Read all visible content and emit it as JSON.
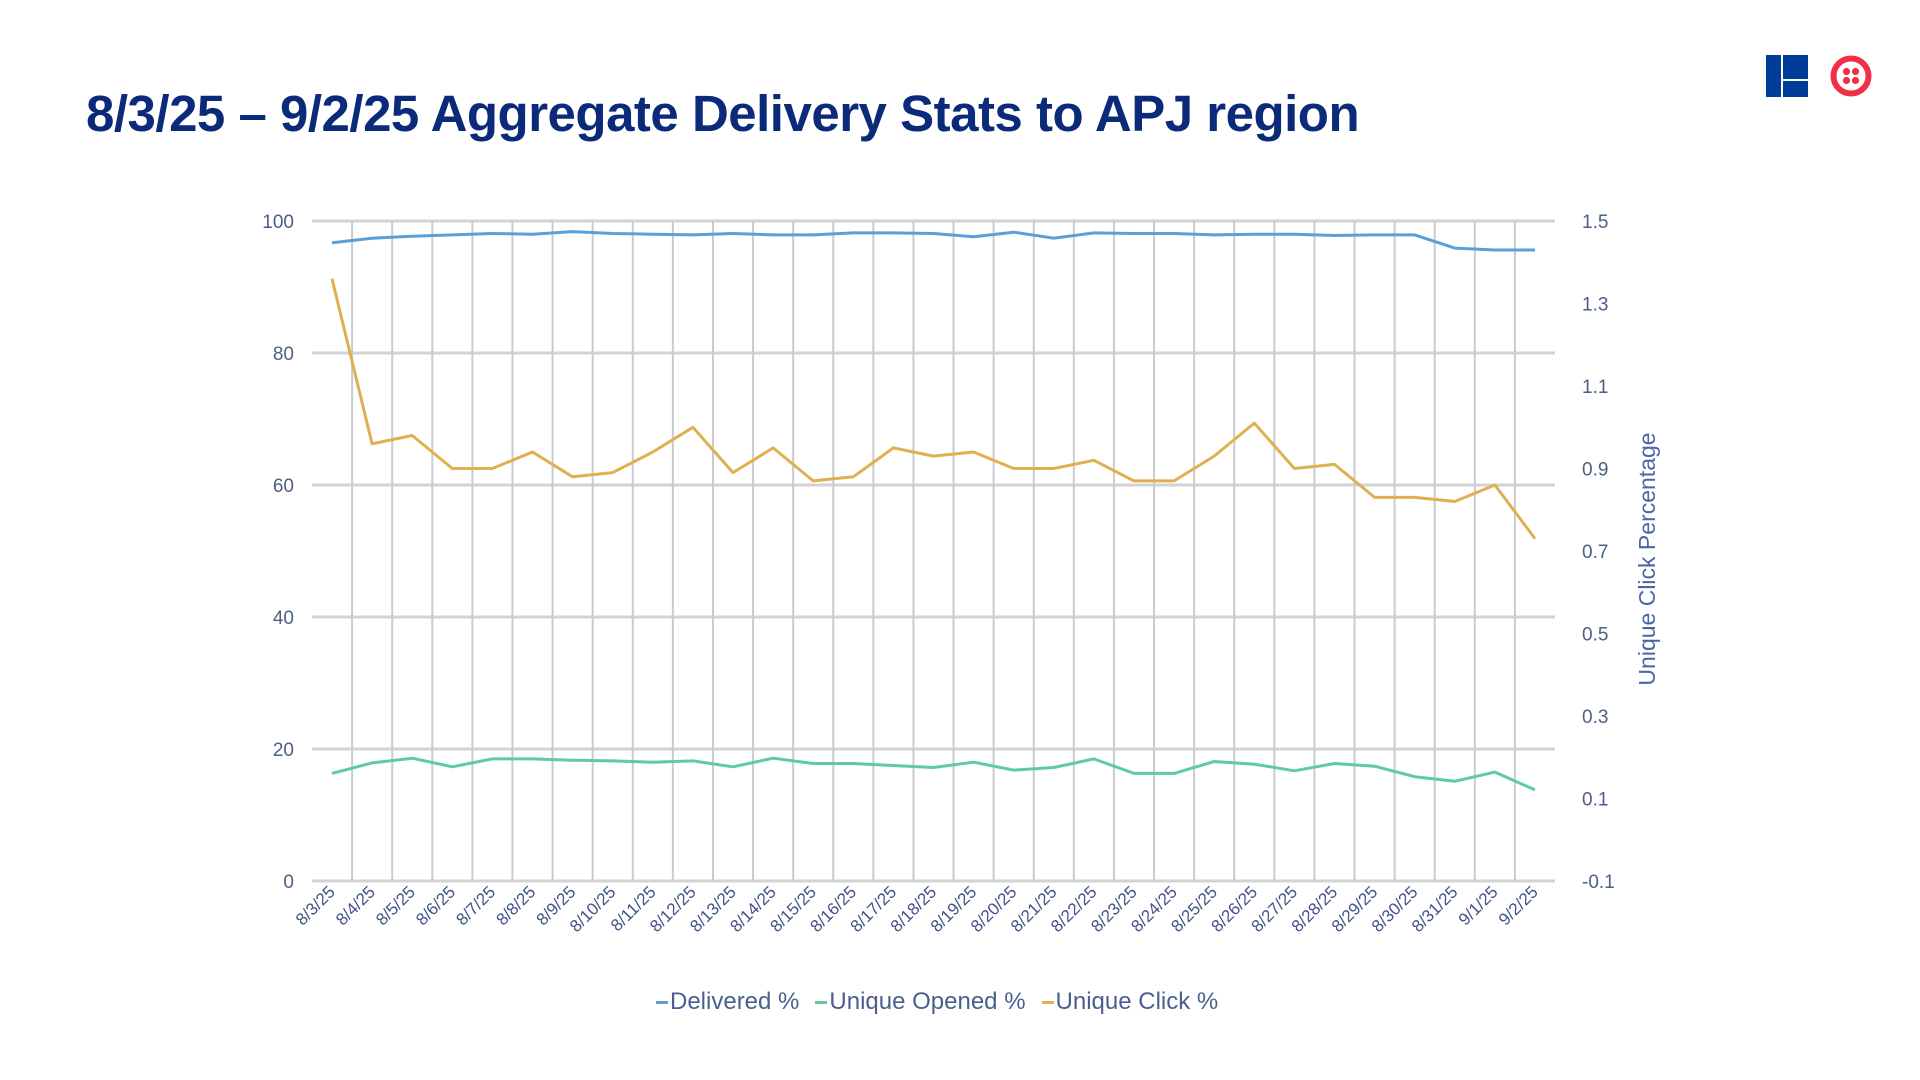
{
  "slide": {
    "title": "8/3/25 – 9/2/25 Aggregate Delivery Stats to APJ region"
  },
  "logos": [
    {
      "name": "squares-logo",
      "color": "#003d99"
    },
    {
      "name": "twilio-logo",
      "color": "#f22f46"
    }
  ],
  "chart_data": {
    "type": "line",
    "title": "",
    "xlabel": "",
    "ylabel_left": "",
    "ylabel_right": "Unique Click Percentage",
    "ylim_left": [
      0,
      100
    ],
    "yticks_left": [
      "0",
      "20",
      "40",
      "60",
      "80",
      "100"
    ],
    "ylim_right": [
      -0.1,
      1.5
    ],
    "yticks_right": [
      "-0.1",
      "0.1",
      "0.3",
      "0.5",
      "0.7",
      "0.9",
      "1.1",
      "1.3",
      "1.5"
    ],
    "grid": true,
    "legend_position": "bottom",
    "categories": [
      "8/3/25",
      "8/4/25",
      "8/5/25",
      "8/6/25",
      "8/7/25",
      "8/8/25",
      "8/9/25",
      "8/10/25",
      "8/11/25",
      "8/12/25",
      "8/13/25",
      "8/14/25",
      "8/15/25",
      "8/16/25",
      "8/17/25",
      "8/18/25",
      "8/19/25",
      "8/20/25",
      "8/21/25",
      "8/22/25",
      "8/23/25",
      "8/24/25",
      "8/25/25",
      "8/26/25",
      "8/27/25",
      "8/28/25",
      "8/29/25",
      "8/30/25",
      "8/31/25",
      "9/1/25",
      "9/2/25"
    ],
    "series": [
      {
        "name": "Delivered %",
        "axis": "left",
        "color": "#5b9fd8",
        "values": [
          96.7,
          97.4,
          97.7,
          97.9,
          98.1,
          98.0,
          98.4,
          98.1,
          98.0,
          97.9,
          98.1,
          97.9,
          97.9,
          98.2,
          98.2,
          98.1,
          97.6,
          98.3,
          97.4,
          98.2,
          98.1,
          98.1,
          97.9,
          98.0,
          98.0,
          97.8,
          97.9,
          97.9,
          95.9,
          95.6,
          95.6
        ]
      },
      {
        "name": "Unique Opened %",
        "axis": "left",
        "color": "#5ecba1",
        "values": [
          16.3,
          17.9,
          18.6,
          17.3,
          18.5,
          18.5,
          18.3,
          18.2,
          18.0,
          18.2,
          17.3,
          18.6,
          17.8,
          17.8,
          17.5,
          17.2,
          18.0,
          16.8,
          17.2,
          18.5,
          16.3,
          16.3,
          18.1,
          17.7,
          16.7,
          17.8,
          17.4,
          15.8,
          15.1,
          16.5,
          13.8
        ]
      },
      {
        "name": "Unique Click %",
        "axis": "right",
        "color": "#e0b050",
        "values": [
          1.36,
          0.96,
          0.98,
          0.9,
          0.9,
          0.94,
          0.88,
          0.89,
          0.94,
          1.0,
          0.89,
          0.95,
          0.87,
          0.88,
          0.95,
          0.93,
          0.94,
          0.9,
          0.9,
          0.92,
          0.87,
          0.87,
          0.93,
          1.01,
          0.9,
          0.91,
          0.83,
          0.83,
          0.82,
          0.86,
          0.73
        ]
      }
    ]
  }
}
